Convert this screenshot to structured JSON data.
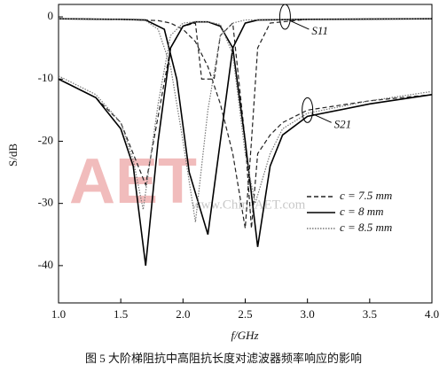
{
  "chart_data": {
    "type": "line",
    "xlabel": "f/GHz",
    "ylabel": "S/dB",
    "caption": "图 5  大阶梯阻抗中高阻抗长度对滤波器频率响应的影响",
    "watermark": [
      "AET",
      "www.ChinaAET.com"
    ],
    "xlim": [
      1.0,
      4.0
    ],
    "xticks": [
      {
        "value": 1,
        "label": "1.0"
      },
      1.5,
      {
        "value": 2,
        "label": "2.0"
      },
      2.5,
      {
        "value": 3,
        "label": "3.0"
      },
      3.5,
      {
        "value": 4,
        "label": "4.0"
      }
    ],
    "ylim": [
      -46,
      2
    ],
    "yticks": [
      -40,
      -30,
      -20,
      -10,
      0
    ],
    "annotations": [
      {
        "text": "S11",
        "x": 2.82,
        "y": 0
      },
      {
        "text": "S21",
        "x": 3.0,
        "y": -15
      }
    ],
    "series": [
      {
        "name": "c = 7.5 mm",
        "color": "#222222",
        "dash": "dashed",
        "s11": {
          "x": [
            1.0,
            1.5,
            1.8,
            1.9,
            2.0,
            2.1,
            2.2,
            2.3,
            2.4,
            2.5,
            2.55,
            2.6,
            2.7,
            3.0,
            4.0
          ],
          "values": [
            -0.3,
            -0.4,
            -0.6,
            -1,
            -2,
            -4,
            -8,
            -14,
            -22,
            -34,
            -20,
            -5,
            -1,
            -0.4,
            -0.3
          ]
        },
        "s21": {
          "x": [
            1.0,
            1.3,
            1.5,
            1.6,
            1.7,
            1.8,
            1.9,
            2.0,
            2.1,
            2.15,
            2.25,
            2.3,
            2.4,
            2.5,
            2.55,
            2.6,
            2.7,
            2.8,
            3.0,
            3.5,
            4.0
          ],
          "values": [
            -10,
            -13,
            -17,
            -22,
            -27,
            -16,
            -5,
            -1.5,
            -1,
            -10,
            -10,
            -3,
            -1,
            -20,
            -34,
            -22,
            -19,
            -17,
            -15,
            -13.5,
            -12.5
          ]
        }
      },
      {
        "name": "c = 8 mm",
        "color": "#000000",
        "dash": "solid",
        "s11": {
          "x": [
            1.0,
            1.5,
            1.7,
            1.85,
            1.95,
            2.05,
            2.2,
            2.3,
            2.4,
            2.5,
            2.6,
            3.0,
            4.0
          ],
          "values": [
            -0.3,
            -0.4,
            -0.5,
            -2,
            -10,
            -25,
            -35,
            -20,
            -5,
            -1,
            -0.5,
            -0.4,
            -0.3
          ]
        },
        "s21": {
          "x": [
            1.0,
            1.3,
            1.5,
            1.6,
            1.7,
            1.8,
            1.9,
            2.0,
            2.1,
            2.2,
            2.3,
            2.4,
            2.5,
            2.6,
            2.7,
            2.8,
            3.0,
            3.5,
            4.0
          ],
          "values": [
            -10,
            -13,
            -18,
            -24,
            -40,
            -20,
            -5,
            -1.5,
            -0.8,
            -0.8,
            -1.5,
            -5,
            -20,
            -37,
            -24,
            -19,
            -16,
            -14,
            -12.5
          ]
        }
      },
      {
        "name": "c = 8.5 mm",
        "color": "#777777",
        "dash": "dotted",
        "s11": {
          "x": [
            1.0,
            1.5,
            1.7,
            1.8,
            1.9,
            2.0,
            2.1,
            2.2,
            2.3,
            2.4,
            2.5,
            3.0,
            4.0
          ],
          "values": [
            -0.3,
            -0.4,
            -0.6,
            -2,
            -8,
            -20,
            -33,
            -15,
            -3,
            -1,
            -0.5,
            -0.4,
            -0.3
          ]
        },
        "s21": {
          "x": [
            1.0,
            1.3,
            1.5,
            1.6,
            1.68,
            1.8,
            1.9,
            2.0,
            2.1,
            2.2,
            2.3,
            2.4,
            2.5,
            2.58,
            2.7,
            2.8,
            3.0,
            3.5,
            4.0
          ],
          "values": [
            -9.5,
            -12.5,
            -17,
            -23,
            -31,
            -14,
            -3,
            -1,
            -0.8,
            -0.8,
            -1.2,
            -6,
            -22,
            -30,
            -22,
            -18,
            -15.5,
            -13.5,
            -12
          ]
        }
      }
    ]
  }
}
